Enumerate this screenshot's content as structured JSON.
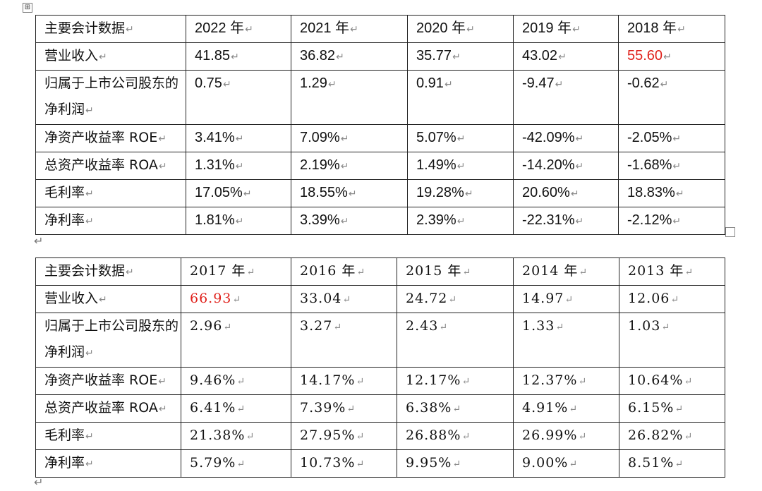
{
  "table1": {
    "header": [
      "主要会计数据",
      "2022 年",
      "2021 年",
      "2020 年",
      "2019 年",
      "2018 年"
    ],
    "rows": [
      {
        "label": "营业收入",
        "values": [
          "41.85",
          "36.82",
          "35.77",
          "43.02",
          "55.60"
        ]
      },
      {
        "label": "归属于上市公司股东的净利润",
        "values": [
          "0.75",
          "1.29",
          "0.91",
          "-9.47",
          "-0.62"
        ]
      },
      {
        "label": "净资产收益率 ROE",
        "values": [
          "3.41%",
          "7.09%",
          "5.07%",
          "-42.09%",
          "-2.05%"
        ]
      },
      {
        "label": "总资产收益率 ROA",
        "values": [
          "1.31%",
          "2.19%",
          "1.49%",
          "-14.20%",
          "-1.68%"
        ]
      },
      {
        "label": "毛利率",
        "values": [
          "17.05%",
          "18.55%",
          "19.28%",
          "20.60%",
          "18.83%"
        ]
      },
      {
        "label": "净利率",
        "values": [
          "1.81%",
          "3.39%",
          "2.39%",
          "-22.31%",
          "-2.12%"
        ]
      }
    ],
    "highlight_color": "#e0211b"
  },
  "table2": {
    "header": [
      "主要会计数据",
      "2017 年",
      "2016 年",
      "2015 年",
      "2014 年",
      "2013 年"
    ],
    "rows": [
      {
        "label": "营业收入",
        "values": [
          "66.93",
          "33.04",
          "24.72",
          "14.97",
          "12.06"
        ]
      },
      {
        "label": "归属于上市公司股东的净利润",
        "values": [
          "2.96",
          "3.27",
          "2.43",
          "1.33",
          "1.03"
        ]
      },
      {
        "label": "净资产收益率 ROE",
        "values": [
          "9.46%",
          "14.17%",
          "12.17%",
          "12.37%",
          "10.64%"
        ]
      },
      {
        "label": "总资产收益率 ROA",
        "values": [
          "6.41%",
          "7.39%",
          "6.38%",
          "4.91%",
          "6.15%"
        ]
      },
      {
        "label": "毛利率",
        "values": [
          "21.38%",
          "27.95%",
          "26.88%",
          "26.99%",
          "26.82%"
        ]
      },
      {
        "label": "净利率",
        "values": [
          "5.79%",
          "10.73%",
          "9.95%",
          "9.00%",
          "8.51%"
        ]
      }
    ],
    "highlight_color": "#e0211b"
  },
  "marks": {
    "paragraph_mark": "↵",
    "move_handle": "⊞"
  },
  "icons": {
    "move_handle": "table-move-handle-icon",
    "resize_handle": "table-resize-handle-icon"
  }
}
